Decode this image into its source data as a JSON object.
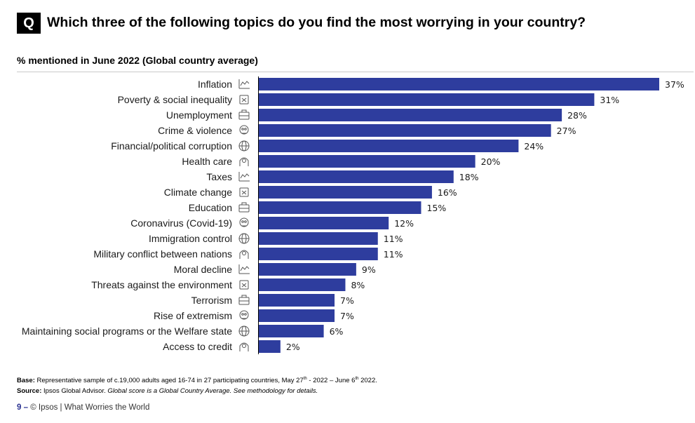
{
  "header": {
    "q_label": "Q",
    "question": "Which three of the following topics do you find the most worrying in your country?"
  },
  "chart_data": {
    "type": "bar",
    "orientation": "horizontal",
    "title": "% mentioned in June 2022 (Global country average)",
    "categories": [
      "Inflation",
      "Poverty & social inequality",
      "Unemployment",
      "Crime & violence",
      "Financial/political corruption",
      "Health care",
      "Taxes",
      "Climate change",
      "Education",
      "Coronavirus (Covid-19)",
      "Immigration control",
      "Military conflict between nations",
      "Moral decline",
      "Threats against the environment",
      "Terrorism",
      "Rise of extremism",
      "Maintaining social programs or the Welfare state",
      "Access to credit"
    ],
    "icons": [
      "line-chart-icon",
      "poverty-icon",
      "briefcase-icon",
      "skull-crossbones-icon",
      "head-dollar-icon",
      "heart-hand-icon",
      "calculator-icon",
      "sun-icon",
      "graduation-cap-icon",
      "warning-triangle-icon",
      "globe-icon",
      "globe-conflict-icon",
      "figure-icon",
      "earth-icon",
      "person-icon",
      "fist-icon",
      "hands-people-icon",
      "card-hand-icon"
    ],
    "values": [
      37,
      31,
      28,
      27,
      24,
      20,
      18,
      16,
      15,
      12,
      11,
      11,
      9,
      8,
      7,
      7,
      6,
      2
    ],
    "value_labels": [
      "37%",
      "31%",
      "28%",
      "27%",
      "24%",
      "20%",
      "18%",
      "16%",
      "15%",
      "12%",
      "11%",
      "11%",
      "9%",
      "8%",
      "7%",
      "7%",
      "6%",
      "2%"
    ],
    "xlim": [
      0,
      37
    ],
    "bar_color": "#2e3d9e",
    "grid": false
  },
  "footer": {
    "base_label": "Base:",
    "base_text_a": " Representative sample of c.19,000 adults aged 16-74 in 27 participating countries, May 27",
    "base_sup_a": "th",
    "base_text_b": " - 2022 – June 6",
    "base_sup_b": "th",
    "base_text_c": " 2022.",
    "source_label": "Source:",
    "source_text": " Ipsos Global Advisor. ",
    "source_italic": "Global score is a Global Country Average. See methodology for details.",
    "page_number": "9 –",
    "credit": "© Ipsos | What Worries the World"
  }
}
